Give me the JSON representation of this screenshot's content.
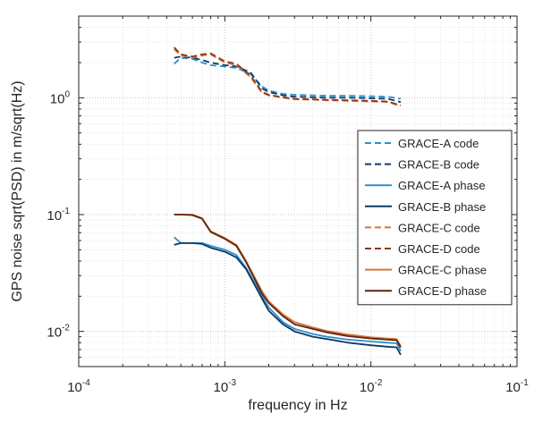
{
  "chart_data": {
    "type": "line",
    "title": "",
    "xlabel": "frequency in Hz",
    "ylabel": "GPS noise sqrt(PSD) in m/sqrt(Hz)",
    "x_scale": "log",
    "y_scale": "log",
    "xlim": [
      0.0001,
      0.1
    ],
    "ylim": [
      0.005,
      5
    ],
    "grid": true,
    "legend_position": "right",
    "x_ticks": [
      {
        "value": 0.0001,
        "base": "10",
        "exp": "-4"
      },
      {
        "value": 0.001,
        "base": "10",
        "exp": "-3"
      },
      {
        "value": 0.01,
        "base": "10",
        "exp": "-2"
      },
      {
        "value": 0.1,
        "base": "10",
        "exp": "-1"
      }
    ],
    "y_ticks": [
      {
        "value": 0.01,
        "base": "10",
        "exp": "-2"
      },
      {
        "value": 0.1,
        "base": "10",
        "exp": "-1"
      },
      {
        "value": 1,
        "base": "10",
        "exp": "0"
      }
    ],
    "series": [
      {
        "name": "GRACE-A code",
        "color": "#2b8fd0",
        "style": "dashed",
        "x": [
          0.00045,
          0.0005,
          0.0006,
          0.0007,
          0.0008,
          0.001,
          0.0012,
          0.0015,
          0.0018,
          0.002,
          0.0025,
          0.003,
          0.004,
          0.005,
          0.007,
          0.01,
          0.013,
          0.016
        ],
        "y": [
          1.95,
          2.2,
          2.15,
          2.0,
          1.9,
          1.85,
          1.8,
          1.6,
          1.25,
          1.15,
          1.08,
          1.06,
          1.05,
          1.04,
          1.04,
          1.03,
          1.02,
          0.98
        ]
      },
      {
        "name": "GRACE-B code",
        "color": "#0d3a66",
        "style": "dashed",
        "x": [
          0.00045,
          0.0005,
          0.0006,
          0.0007,
          0.0008,
          0.001,
          0.0012,
          0.0015,
          0.0018,
          0.002,
          0.0025,
          0.003,
          0.004,
          0.005,
          0.007,
          0.01,
          0.013,
          0.016
        ],
        "y": [
          2.2,
          2.25,
          2.2,
          2.1,
          2.0,
          1.9,
          1.85,
          1.65,
          1.2,
          1.12,
          1.05,
          1.02,
          1.01,
          1.0,
          1.0,
          0.99,
          0.98,
          0.92
        ]
      },
      {
        "name": "GRACE-A phase",
        "color": "#2b8fd0",
        "style": "solid",
        "x": [
          0.00045,
          0.0005,
          0.0006,
          0.0007,
          0.0008,
          0.001,
          0.0012,
          0.0014,
          0.0016,
          0.0018,
          0.002,
          0.0025,
          0.003,
          0.004,
          0.005,
          0.007,
          0.01,
          0.013,
          0.015,
          0.016
        ],
        "y": [
          0.064,
          0.057,
          0.057,
          0.057,
          0.054,
          0.05,
          0.045,
          0.035,
          0.026,
          0.02,
          0.016,
          0.012,
          0.0105,
          0.0095,
          0.009,
          0.0085,
          0.0082,
          0.008,
          0.0079,
          0.0068
        ]
      },
      {
        "name": "GRACE-B phase",
        "color": "#0d3a66",
        "style": "solid",
        "x": [
          0.00045,
          0.0005,
          0.0006,
          0.0007,
          0.0008,
          0.001,
          0.0012,
          0.0014,
          0.0016,
          0.0018,
          0.002,
          0.0025,
          0.003,
          0.004,
          0.005,
          0.007,
          0.01,
          0.013,
          0.015,
          0.016
        ],
        "y": [
          0.055,
          0.057,
          0.057,
          0.056,
          0.052,
          0.048,
          0.043,
          0.034,
          0.025,
          0.019,
          0.015,
          0.0115,
          0.01,
          0.009,
          0.0086,
          0.008,
          0.0076,
          0.0074,
          0.0073,
          0.0063
        ]
      },
      {
        "name": "GRACE-C code",
        "color": "#d7743a",
        "style": "dashed",
        "x": [
          0.00045,
          0.0005,
          0.0006,
          0.0007,
          0.0008,
          0.001,
          0.0012,
          0.0015,
          0.0018,
          0.002,
          0.0025,
          0.003,
          0.004,
          0.005,
          0.007,
          0.01,
          0.013,
          0.016
        ],
        "y": [
          2.6,
          2.3,
          2.2,
          2.3,
          2.35,
          2.0,
          1.9,
          1.5,
          1.1,
          1.05,
          1.0,
          0.97,
          0.96,
          0.95,
          0.94,
          0.93,
          0.92,
          0.85
        ]
      },
      {
        "name": "GRACE-D code",
        "color": "#8a3a18",
        "style": "dashed",
        "x": [
          0.00045,
          0.0005,
          0.0006,
          0.0007,
          0.0008,
          0.001,
          0.0012,
          0.0015,
          0.0018,
          0.002,
          0.0025,
          0.003,
          0.004,
          0.005,
          0.007,
          0.01,
          0.013,
          0.016
        ],
        "y": [
          2.7,
          2.35,
          2.25,
          2.35,
          2.4,
          2.05,
          1.95,
          1.55,
          1.12,
          1.06,
          1.01,
          0.98,
          0.97,
          0.96,
          0.95,
          0.94,
          0.93,
          0.86
        ]
      },
      {
        "name": "GRACE-C phase",
        "color": "#d7743a",
        "style": "solid",
        "x": [
          0.00045,
          0.0005,
          0.0006,
          0.0007,
          0.0008,
          0.001,
          0.0012,
          0.0014,
          0.0016,
          0.0018,
          0.002,
          0.0025,
          0.003,
          0.004,
          0.005,
          0.007,
          0.01,
          0.013,
          0.015,
          0.016
        ],
        "y": [
          0.1,
          0.1,
          0.1,
          0.093,
          0.072,
          0.063,
          0.055,
          0.04,
          0.029,
          0.022,
          0.018,
          0.014,
          0.012,
          0.0108,
          0.0101,
          0.0094,
          0.0089,
          0.0087,
          0.0086,
          0.0075
        ]
      },
      {
        "name": "GRACE-D phase",
        "color": "#5c240c",
        "style": "solid",
        "x": [
          0.00045,
          0.0005,
          0.0006,
          0.0007,
          0.0008,
          0.001,
          0.0012,
          0.0014,
          0.0016,
          0.0018,
          0.002,
          0.0025,
          0.003,
          0.004,
          0.005,
          0.007,
          0.01,
          0.013,
          0.015,
          0.016
        ],
        "y": [
          0.1,
          0.1,
          0.099,
          0.092,
          0.071,
          0.062,
          0.054,
          0.039,
          0.028,
          0.021,
          0.0175,
          0.0135,
          0.0115,
          0.0105,
          0.0098,
          0.0091,
          0.0087,
          0.0085,
          0.0084,
          0.0073
        ]
      }
    ]
  }
}
